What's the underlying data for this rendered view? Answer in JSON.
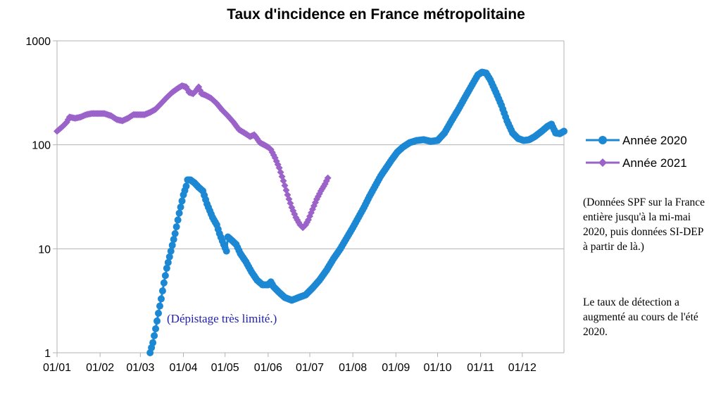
{
  "chart_data": {
    "type": "line",
    "title": "Taux d'incidence en France métropolitaine",
    "y_scale": "log",
    "ylim": [
      1,
      1000
    ],
    "y_ticks": [
      {
        "value": 1,
        "label": "1"
      },
      {
        "value": 10,
        "label": "10"
      },
      {
        "value": 100,
        "label": "100"
      },
      {
        "value": 1000,
        "label": "1000"
      }
    ],
    "x_unit": "day of year",
    "xlim": [
      1,
      366
    ],
    "x_ticks": [
      {
        "value": 1,
        "label": "01/01"
      },
      {
        "value": 32,
        "label": "01/02"
      },
      {
        "value": 61,
        "label": "01/03"
      },
      {
        "value": 92,
        "label": "01/04"
      },
      {
        "value": 122,
        "label": "01/05"
      },
      {
        "value": 153,
        "label": "01/06"
      },
      {
        "value": 183,
        "label": "01/07"
      },
      {
        "value": 214,
        "label": "01/08"
      },
      {
        "value": 245,
        "label": "01/09"
      },
      {
        "value": 275,
        "label": "01/10"
      },
      {
        "value": 306,
        "label": "01/11"
      },
      {
        "value": 336,
        "label": "01/12"
      }
    ],
    "grid": true,
    "legend_position": "right",
    "series": [
      {
        "name": "Année 2020",
        "color": "#1c88d4",
        "marker": "circle",
        "points": [
          [
            68,
            1.0
          ],
          [
            70,
            1.25
          ],
          [
            72,
            1.7
          ],
          [
            74,
            2.4
          ],
          [
            76,
            3.3
          ],
          [
            78,
            4.7
          ],
          [
            80,
            6.5
          ],
          [
            83,
            9.5
          ],
          [
            86,
            14
          ],
          [
            89,
            22
          ],
          [
            92,
            33
          ],
          [
            94,
            40
          ],
          [
            95,
            46
          ],
          [
            97,
            46
          ],
          [
            100,
            43
          ],
          [
            103,
            39
          ],
          [
            106,
            36
          ],
          [
            109,
            27
          ],
          [
            113,
            20
          ],
          [
            116,
            17
          ],
          [
            118,
            14
          ],
          [
            121,
            11
          ],
          [
            123,
            9.5
          ],
          [
            124,
            13
          ],
          [
            127,
            12
          ],
          [
            130,
            11
          ],
          [
            133,
            9
          ],
          [
            137,
            7.5
          ],
          [
            141,
            6
          ],
          [
            145,
            5
          ],
          [
            149,
            4.5
          ],
          [
            153,
            4.5
          ],
          [
            155,
            4.8
          ],
          [
            157,
            4.3
          ],
          [
            161,
            3.8
          ],
          [
            165,
            3.4
          ],
          [
            170,
            3.2
          ],
          [
            175,
            3.4
          ],
          [
            180,
            3.6
          ],
          [
            185,
            4.2
          ],
          [
            190,
            5
          ],
          [
            195,
            6.2
          ],
          [
            200,
            8
          ],
          [
            205,
            10
          ],
          [
            210,
            13
          ],
          [
            214,
            16
          ],
          [
            218,
            20
          ],
          [
            222,
            25
          ],
          [
            226,
            32
          ],
          [
            230,
            40
          ],
          [
            234,
            50
          ],
          [
            238,
            60
          ],
          [
            242,
            72
          ],
          [
            246,
            85
          ],
          [
            250,
            95
          ],
          [
            255,
            105
          ],
          [
            260,
            110
          ],
          [
            265,
            112
          ],
          [
            270,
            108
          ],
          [
            275,
            110
          ],
          [
            280,
            130
          ],
          [
            285,
            170
          ],
          [
            290,
            220
          ],
          [
            295,
            290
          ],
          [
            300,
            380
          ],
          [
            304,
            470
          ],
          [
            307,
            500
          ],
          [
            310,
            490
          ],
          [
            313,
            420
          ],
          [
            317,
            320
          ],
          [
            321,
            240
          ],
          [
            325,
            170
          ],
          [
            329,
            130
          ],
          [
            333,
            115
          ],
          [
            337,
            110
          ],
          [
            341,
            112
          ],
          [
            345,
            120
          ],
          [
            350,
            135
          ],
          [
            354,
            150
          ],
          [
            357,
            158
          ],
          [
            360,
            130
          ],
          [
            363,
            128
          ],
          [
            366,
            135
          ]
        ]
      },
      {
        "name": "Année 2021",
        "color": "#9b63c9",
        "marker": "diamond",
        "points": [
          [
            1,
            135
          ],
          [
            5,
            150
          ],
          [
            8,
            165
          ],
          [
            10,
            185
          ],
          [
            14,
            180
          ],
          [
            18,
            185
          ],
          [
            22,
            195
          ],
          [
            26,
            200
          ],
          [
            30,
            200
          ],
          [
            35,
            200
          ],
          [
            40,
            190
          ],
          [
            44,
            175
          ],
          [
            48,
            170
          ],
          [
            52,
            180
          ],
          [
            56,
            195
          ],
          [
            60,
            195
          ],
          [
            64,
            195
          ],
          [
            68,
            205
          ],
          [
            72,
            220
          ],
          [
            76,
            250
          ],
          [
            80,
            285
          ],
          [
            84,
            320
          ],
          [
            88,
            350
          ],
          [
            91,
            370
          ],
          [
            94,
            360
          ],
          [
            96,
            320
          ],
          [
            99,
            310
          ],
          [
            101,
            330
          ],
          [
            103,
            360
          ],
          [
            105,
            310
          ],
          [
            108,
            300
          ],
          [
            112,
            280
          ],
          [
            116,
            250
          ],
          [
            120,
            215
          ],
          [
            124,
            190
          ],
          [
            128,
            165
          ],
          [
            132,
            140
          ],
          [
            136,
            130
          ],
          [
            140,
            120
          ],
          [
            143,
            125
          ],
          [
            145,
            115
          ],
          [
            147,
            105
          ],
          [
            150,
            100
          ],
          [
            153,
            95
          ],
          [
            155,
            90
          ],
          [
            158,
            75
          ],
          [
            161,
            60
          ],
          [
            164,
            45
          ],
          [
            167,
            33
          ],
          [
            170,
            25
          ],
          [
            173,
            20
          ],
          [
            176,
            17
          ],
          [
            178,
            16
          ],
          [
            180,
            17
          ],
          [
            182,
            19
          ],
          [
            185,
            24
          ],
          [
            188,
            30
          ],
          [
            191,
            36
          ],
          [
            194,
            42
          ],
          [
            196,
            48
          ]
        ]
      }
    ],
    "annotation": "(Dépistage très limité.)"
  },
  "notes": [
    "(Données SPF sur la France entière jusqu'à la mi-mai 2020, puis données SI-DEP à partir de là.)",
    "Le taux de détection a augmenté au cours de l'été 2020."
  ]
}
